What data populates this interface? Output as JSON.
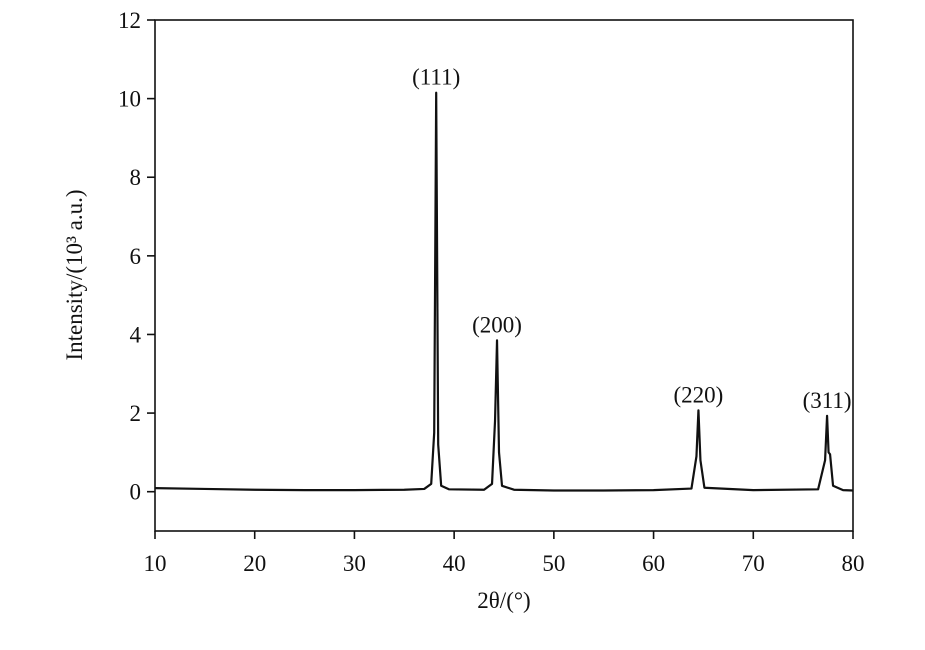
{
  "chart_data": {
    "type": "line",
    "xlabel": "2θ/(°)",
    "ylabel": "Intensity/(10³ a.u.)",
    "x": [
      10,
      15,
      20,
      25,
      30,
      35,
      37,
      37.7,
      38.0,
      38.2,
      38.4,
      38.7,
      39.5,
      43,
      43.8,
      44.1,
      44.3,
      44.5,
      44.8,
      46,
      50,
      55,
      60,
      63.8,
      64.3,
      64.5,
      64.7,
      65.1,
      70,
      76.5,
      77.2,
      77.4,
      77.55,
      77.7,
      78.0,
      79,
      80
    ],
    "series": [
      {
        "color": "#111111",
        "values": [
          0.09,
          0.07,
          0.05,
          0.04,
          0.04,
          0.05,
          0.07,
          0.2,
          1.5,
          10.15,
          1.2,
          0.15,
          0.06,
          0.05,
          0.2,
          1.8,
          3.85,
          1.0,
          0.15,
          0.05,
          0.03,
          0.03,
          0.04,
          0.08,
          0.9,
          2.07,
          0.8,
          0.1,
          0.04,
          0.06,
          0.8,
          1.93,
          1.0,
          0.95,
          0.15,
          0.04,
          0.03
        ]
      }
    ],
    "annotations": [
      "(111)",
      "(200)",
      "(220)",
      "(311)"
    ],
    "xlim": [
      10,
      80
    ],
    "xticks": [
      10,
      20,
      30,
      40,
      50,
      60,
      70,
      80
    ],
    "ylim": [
      -1,
      12
    ],
    "yticks": [
      0,
      2,
      4,
      6,
      8,
      10,
      12
    ]
  }
}
